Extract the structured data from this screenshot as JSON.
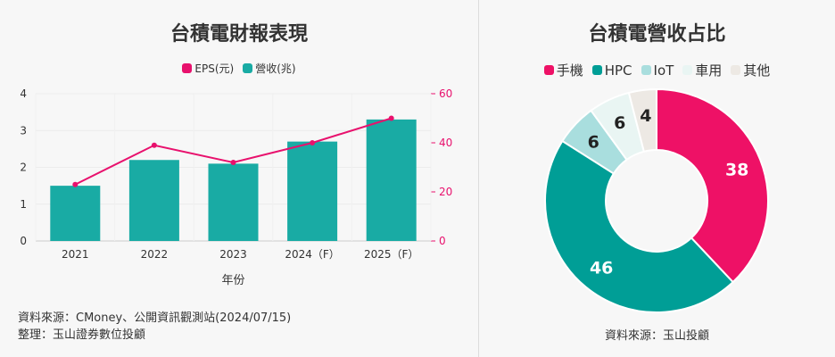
{
  "left": {
    "title": "台積電財報表現",
    "source_line1": "資料來源：CMoney、公開資訊觀測站(2024/07/15)",
    "source_line2": "整理：玉山證券數位投顧"
  },
  "right": {
    "title": "台積電營收占比",
    "source": "資料來源：玉山投顧"
  },
  "colors": {
    "eps": "#e8116d",
    "revenue": "#19aba4",
    "phone": "#ee1166",
    "hpc": "#009e96",
    "iot": "#a9dede",
    "car": "#e9f5f3",
    "other": "#ede9e4"
  },
  "chart_data": [
    {
      "type": "bar",
      "title": "台積電財報表現",
      "xlabel": "年份",
      "categories": [
        "2021",
        "2022",
        "2023",
        "2024（F）",
        "2025（F）"
      ],
      "series": [
        {
          "name": "營收(兆)",
          "type": "bar",
          "axis": "left",
          "color": "#19aba4",
          "values": [
            1.5,
            2.2,
            2.1,
            2.7,
            3.3
          ]
        },
        {
          "name": "EPS(元)",
          "type": "line",
          "axis": "right",
          "color": "#e8116d",
          "values": [
            23,
            39,
            32,
            40,
            50
          ]
        }
      ],
      "legend_order": [
        "EPS(元)",
        "營收(兆)"
      ],
      "y_left": {
        "range": [
          0,
          4
        ],
        "ticks": [
          "0",
          "1",
          "2",
          "3",
          "4"
        ]
      },
      "y_right": {
        "range": [
          0,
          60
        ],
        "ticks": [
          "0",
          "20",
          "40",
          "60"
        ]
      },
      "grid": true,
      "legend": "top-center"
    },
    {
      "type": "pie",
      "style": "donut",
      "title": "台積電營收占比",
      "slices": [
        {
          "label": "手機",
          "value": 38,
          "color": "#ee1166",
          "label_text": "38"
        },
        {
          "label": "HPC",
          "value": 46,
          "color": "#009e96",
          "label_text": "46"
        },
        {
          "label": "IoT",
          "value": 6,
          "color": "#a9dede",
          "label_text": "6"
        },
        {
          "label": "車用",
          "value": 6,
          "color": "#e9f5f3",
          "label_text": "6"
        },
        {
          "label": "其他",
          "value": 4,
          "color": "#ede9e4",
          "label_text": "4"
        }
      ],
      "legend": "top-center"
    }
  ]
}
